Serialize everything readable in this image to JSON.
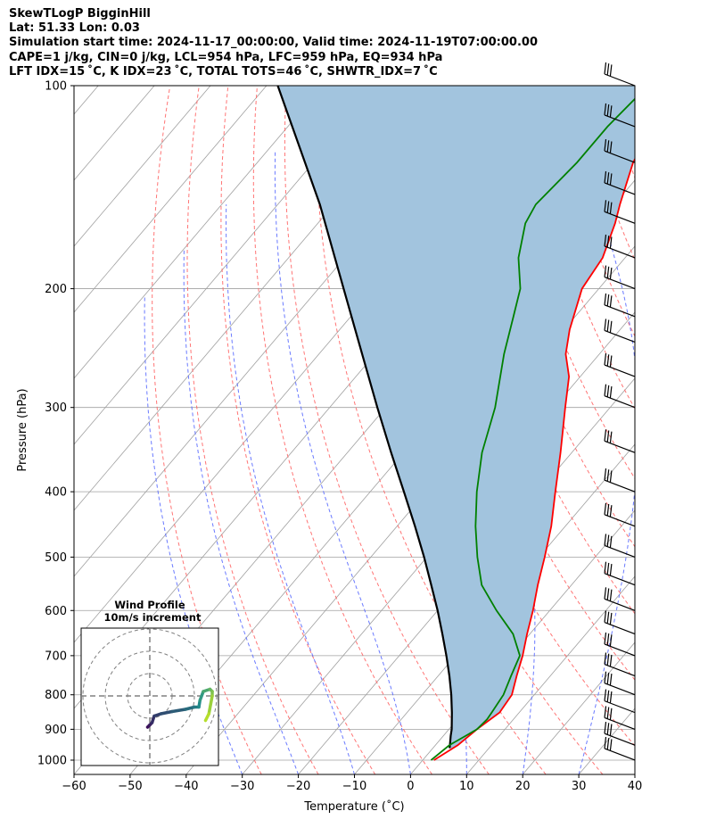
{
  "header": {
    "line1": "SkewTLogP BigginHill",
    "line2": "Lat: 51.33   Lon: 0.03",
    "line3": "Simulation start time: 2024-11-17_00:00:00, Valid time: 2024-11-19T07:00:00.00",
    "line4": "CAPE=1 j/kg, CIN=0 j/kg, LCL=954 hPa, LFC=959 hPa, EQ=934 hPa",
    "line5": "LFT IDX=15 ˚C, K IDX=23 ˚C, TOTAL TOTS=46 ˚C, SHWTR_IDX=7 ˚C"
  },
  "colors": {
    "temperature": "#ff0000",
    "dewpoint": "#008000",
    "parcel": "#000000",
    "cape_fill": "#a2c4de",
    "dry_adiabat": "#ff6666",
    "moist_adiabat": "#5a6cff",
    "isotherm": "#a0a0a0",
    "hodo_low": "#3b0f59",
    "hodo_high": "#b5de2b"
  },
  "chart_data": {
    "type": "line",
    "title": "SkewTLogP BigginHill",
    "xlabel": "Temperature (˚C)",
    "ylabel": "Pressure (hPa)",
    "xlim": [
      -60,
      40
    ],
    "ylim": [
      1050,
      100
    ],
    "x_ticks": [
      -60,
      -50,
      -40,
      -30,
      -20,
      -10,
      0,
      10,
      20,
      30,
      40
    ],
    "x_tick_labels": [
      "−60",
      "−50",
      "−40",
      "−30",
      "−20",
      "−10",
      "0",
      "10",
      "20",
      "30",
      "40"
    ],
    "y_ticks": [
      1000,
      900,
      800,
      700,
      600,
      500,
      400,
      300,
      200,
      100
    ],
    "y_scale": "log",
    "grid": true,
    "series": [
      {
        "name": "Temperature",
        "pressure": [
          1000,
          950,
          900,
          850,
          800,
          750,
          700,
          650,
          600,
          550,
          500,
          450,
          400,
          350,
          300,
          270,
          250,
          230,
          200,
          180,
          160,
          150,
          130,
          115,
          100
        ],
        "values": [
          2,
          4,
          5,
          6.5,
          6,
          4,
          2,
          -0.5,
          -3,
          -6,
          -9,
          -12.5,
          -17,
          -22,
          -28,
          -32,
          -36,
          -39,
          -43,
          -44,
          -47,
          -49,
          -53,
          -55,
          -58
        ]
      },
      {
        "name": "Dewpoint",
        "pressure": [
          1000,
          950,
          920,
          900,
          870,
          850,
          800,
          750,
          700,
          650,
          600,
          550,
          500,
          450,
          400,
          350,
          300,
          250,
          220,
          200,
          180,
          160,
          150,
          130,
          115,
          100
        ],
        "values": [
          1.5,
          2.5,
          4,
          5,
          5.3,
          5.1,
          4.5,
          3,
          1.5,
          -3,
          -9.5,
          -16,
          -21,
          -26,
          -31,
          -36,
          -40.5,
          -47,
          -51,
          -54,
          -59,
          -63,
          -64,
          -63,
          -63,
          -62
        ]
      },
      {
        "name": "Parcel",
        "pressure": [
          960,
          920,
          900,
          850,
          800,
          750,
          700,
          650,
          600,
          550,
          500,
          450,
          400,
          350,
          300,
          250,
          200,
          150,
          100
        ],
        "values": [
          3,
          1.3,
          0.5,
          -2,
          -4.8,
          -8,
          -11.6,
          -15.6,
          -20,
          -25,
          -30.5,
          -36.8,
          -44,
          -52.2,
          -61.5,
          -72.3,
          -85.5,
          -102.5,
          -128
        ]
      }
    ],
    "cape_cin_fill": "between parcel and temperature",
    "wind_barbs": {
      "pressure": [
        1000,
        950,
        900,
        850,
        800,
        750,
        700,
        650,
        600,
        550,
        500,
        450,
        400,
        350,
        300,
        270,
        240,
        220,
        200,
        180,
        160,
        145,
        130,
        115,
        100
      ]
    },
    "hodograph": {
      "title": "Wind Profile",
      "subtitle": "10m/s increment",
      "ring_step_ms": 10,
      "rings": 3,
      "u": [
        -1,
        0,
        1,
        2,
        5,
        10,
        16,
        20,
        22,
        22.5,
        24,
        27,
        28,
        28,
        26.5,
        25
      ],
      "v": [
        -14,
        -13,
        -12,
        -9,
        -8,
        -7,
        -6,
        -5,
        -5,
        -2,
        2,
        3,
        2,
        0,
        -8,
        -11
      ]
    }
  }
}
